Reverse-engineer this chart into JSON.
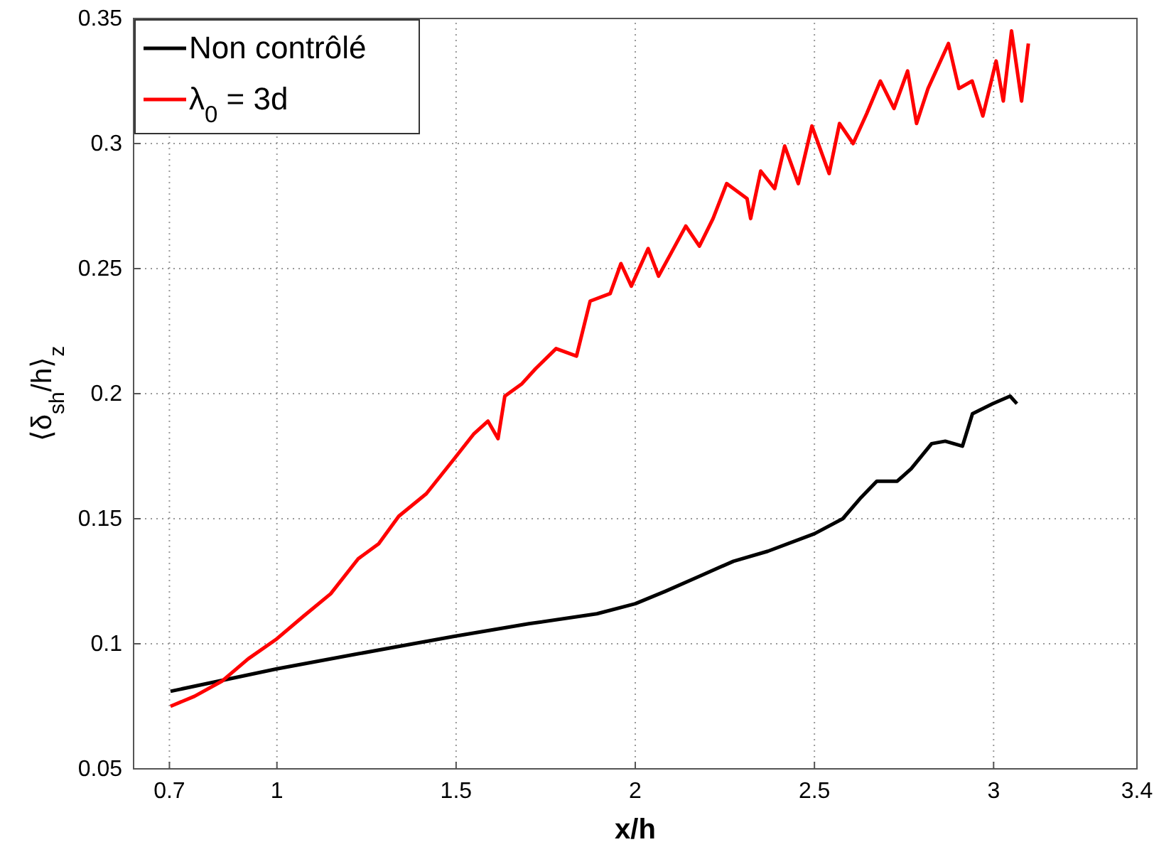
{
  "chart_data": {
    "type": "line",
    "xlabel": "x/h",
    "ylabel": "⟨δ$_{sh}$/h⟩$_{z}$",
    "xlim": [
      0.6,
      3.4
    ],
    "xticks": [
      0.7,
      1,
      1.5,
      2,
      2.5,
      3,
      3.4
    ],
    "ylim": [
      0.05,
      0.35
    ],
    "yticks": [
      0.05,
      0.1,
      0.15,
      0.2,
      0.25,
      0.3,
      0.35
    ],
    "grid": true,
    "legend": "top left",
    "line_style": "solid",
    "marker": "none",
    "series": [
      {
        "name": "Non contrôlé",
        "color": "#000000",
        "x": [
          0.703,
          1.0,
          1.227,
          1.38,
          1.495,
          1.703,
          1.893,
          2.0,
          2.084,
          2.179,
          2.274,
          2.37,
          2.5,
          2.579,
          2.627,
          2.674,
          2.731,
          2.77,
          2.827,
          2.865,
          2.913,
          2.941,
          2.998,
          3.046,
          3.065
        ],
        "values": [
          0.081,
          0.09,
          0.096,
          0.1,
          0.103,
          0.108,
          0.112,
          0.116,
          0.121,
          0.127,
          0.133,
          0.137,
          0.144,
          0.15,
          0.158,
          0.165,
          0.165,
          0.17,
          0.18,
          0.181,
          0.179,
          0.192,
          0.196,
          0.199,
          0.196
        ]
      },
      {
        "name": "λ$_{0}$ = 3d",
        "color": "#ff0000",
        "x": [
          0.703,
          0.77,
          0.846,
          0.92,
          1.0,
          1.074,
          1.15,
          1.227,
          1.284,
          1.34,
          1.417,
          1.495,
          1.55,
          1.589,
          1.617,
          1.636,
          1.684,
          1.722,
          1.779,
          1.836,
          1.874,
          1.93,
          1.96,
          1.989,
          2.036,
          2.065,
          2.103,
          2.141,
          2.179,
          2.217,
          2.255,
          2.312,
          2.322,
          2.35,
          2.389,
          2.417,
          2.455,
          2.493,
          2.541,
          2.57,
          2.608,
          2.646,
          2.684,
          2.722,
          2.76,
          2.785,
          2.817,
          2.874,
          2.903,
          2.94,
          2.97,
          3.007,
          3.027,
          3.05,
          3.078,
          3.097
        ],
        "values": [
          0.075,
          0.079,
          0.085,
          0.094,
          0.102,
          0.111,
          0.12,
          0.134,
          0.14,
          0.151,
          0.16,
          0.174,
          0.184,
          0.189,
          0.182,
          0.199,
          0.204,
          0.21,
          0.218,
          0.215,
          0.237,
          0.24,
          0.252,
          0.243,
          0.258,
          0.247,
          0.257,
          0.267,
          0.259,
          0.27,
          0.284,
          0.278,
          0.27,
          0.289,
          0.282,
          0.299,
          0.284,
          0.307,
          0.288,
          0.308,
          0.3,
          0.312,
          0.325,
          0.314,
          0.329,
          0.308,
          0.322,
          0.34,
          0.322,
          0.325,
          0.311,
          0.333,
          0.317,
          0.345,
          0.317,
          0.34
        ]
      }
    ]
  }
}
